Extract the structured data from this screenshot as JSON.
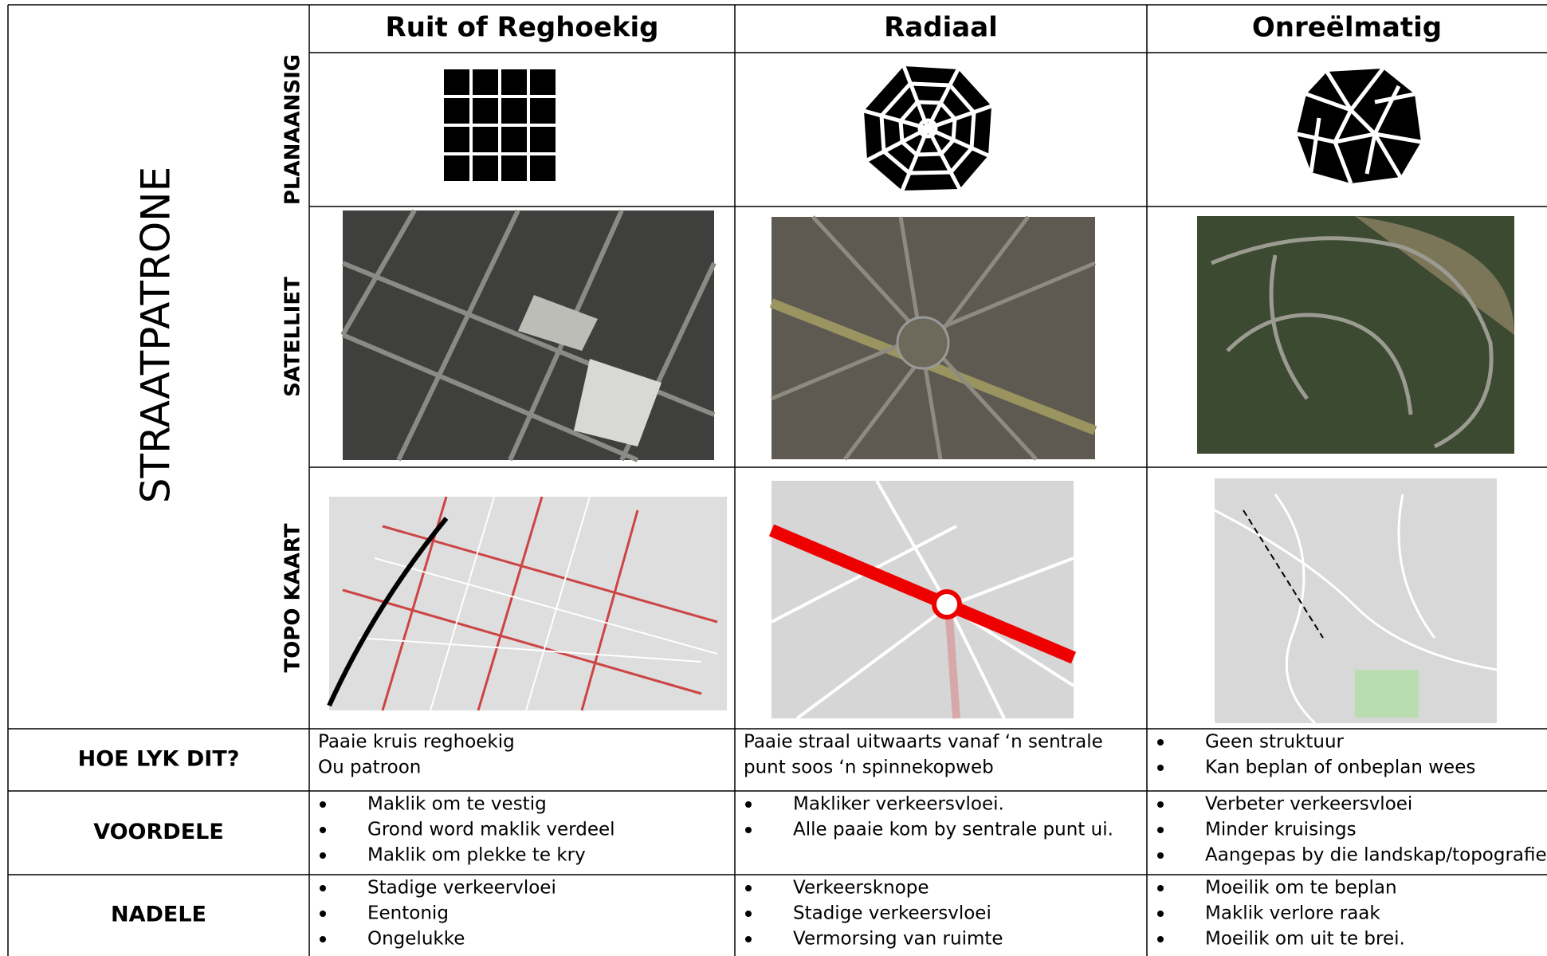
{
  "table": {
    "title": "STRAATPATRONE",
    "columns": [
      "Ruit of Reghoekig",
      "Radiaal",
      "Onreëlmatig"
    ],
    "image_rows": [
      "PLANAANSIG",
      "SATELLIET",
      "TOPO KAART"
    ],
    "rows": [
      {
        "label": "HOE LYK DIT?",
        "cells": [
          {
            "bullets": false,
            "lines": [
              "Paaie kruis reghoekig",
              "Ou patroon"
            ]
          },
          {
            "bullets": false,
            "lines": [
              "Paaie straal uitwaarts vanaf ‘n sentrale",
              "punt soos ‘n spinnekopweb"
            ]
          },
          {
            "bullets": true,
            "lines": [
              "Geen struktuur",
              "Kan beplan of onbeplan wees"
            ]
          }
        ]
      },
      {
        "label": "VOORDELE",
        "cells": [
          {
            "bullets": true,
            "lines": [
              "Maklik om te vestig",
              "Grond word maklik verdeel",
              "Maklik om plekke te kry"
            ]
          },
          {
            "bullets": true,
            "lines": [
              "Makliker verkeersvloei.",
              "Alle paaie kom by sentrale punt ui."
            ]
          },
          {
            "bullets": true,
            "lines": [
              "Verbeter verkeersvloei",
              "Minder kruisings",
              "Aangepas by die landskap/topografie"
            ]
          }
        ]
      },
      {
        "label": "NADELE",
        "cells": [
          {
            "bullets": true,
            "lines": [
              "Stadige verkeervloei",
              "Eentonig",
              "Ongelukke"
            ]
          },
          {
            "bullets": true,
            "lines": [
              "Verkeersknope",
              "Stadige verkeersvloei",
              "Vermorsing van ruimte"
            ]
          },
          {
            "bullets": true,
            "lines": [
              "Moeilik om te beplan",
              "Maklik verlore raak",
              "Moeilik om uit te brei."
            ]
          }
        ]
      }
    ]
  }
}
